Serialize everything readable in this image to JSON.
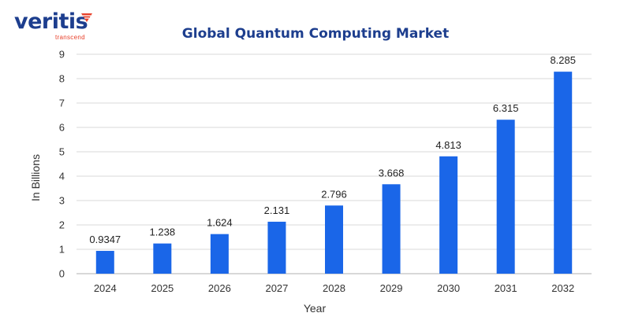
{
  "logo": {
    "name": "veritis",
    "tagline": "transcend",
    "icon": "chevron-stripes-icon",
    "color": "#1d3e8e",
    "accent": "#e8412b"
  },
  "chart_data": {
    "type": "bar",
    "title": "Global Quantum Computing Market",
    "xlabel": "Year",
    "ylabel": "In Billions",
    "categories": [
      "2024",
      "2025",
      "2026",
      "2027",
      "2028",
      "2029",
      "2030",
      "2031",
      "2032"
    ],
    "values": [
      0.9347,
      1.238,
      1.624,
      2.131,
      2.796,
      3.668,
      4.813,
      6.315,
      8.285
    ],
    "data_labels": [
      "0.9347",
      "1.238",
      "1.624",
      "2.131",
      "2.796",
      "3.668",
      "4.813",
      "6.315",
      "8.285"
    ],
    "ylim": [
      0,
      9
    ],
    "yticks": [
      0,
      1,
      2,
      3,
      4,
      5,
      6,
      7,
      8,
      9
    ],
    "grid": true,
    "legend": "none",
    "bar_color": "#1a66e8",
    "grid_color": "#d9d9d9"
  }
}
